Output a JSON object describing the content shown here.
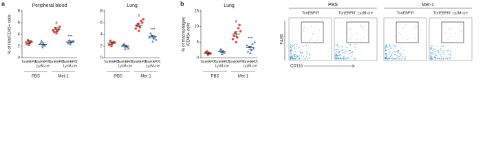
{
  "chart_data": [
    {
      "type": "dot",
      "letter": "a",
      "title": "Peripheral blood",
      "ylabel": [
        "% of IMs/CD45+ cells"
      ],
      "categories": [
        [
          "TonEBPf/f"
        ],
        [
          "TonEBPf/f;",
          "LyzM-cre"
        ],
        [
          "TonEBPf/f"
        ],
        [
          "TonEBPf/f;",
          "LyzM-cre"
        ]
      ],
      "groups": [
        "PBS",
        "Met-1"
      ],
      "colors": [
        "#e0524a",
        "#5b8fc9",
        "#e0524a",
        "#5b8fc9"
      ],
      "points": [
        [
          2.2,
          2.6,
          3.0,
          2.8,
          2.4
        ],
        [
          1.8,
          2.3,
          2.9,
          2.1,
          2.5
        ],
        [
          4.2,
          4.6,
          5.1,
          4.9,
          4.4,
          5.3,
          4.7
        ],
        [
          2.3,
          2.6,
          3.0,
          2.8,
          2.5,
          2.9
        ]
      ],
      "means": [
        2.7,
        2.3,
        4.8,
        2.7
      ],
      "sems": [
        0.3,
        0.3,
        0.3,
        0.2
      ],
      "annotations": [
        null,
        null,
        "#",
        "***"
      ],
      "ylim": [
        0,
        8
      ],
      "yticks": [
        0,
        2,
        4,
        6,
        8
      ]
    },
    {
      "type": "dot",
      "title": "Lung",
      "ylabel": [],
      "categories": [
        [
          "TonEBPf/f"
        ],
        [
          "TonEBPf/f;",
          "LyzM-cre"
        ],
        [
          "TonEBPf/f"
        ],
        [
          "TonEBPf/f;",
          "LyzM-cre"
        ]
      ],
      "groups": [
        "PBS",
        "Met-1"
      ],
      "colors": [
        "#e0524a",
        "#5b8fc9",
        "#e0524a",
        "#5b8fc9"
      ],
      "points": [
        [
          2.0,
          2.5,
          2.9,
          2.7,
          2.2,
          2.6
        ],
        [
          1.5,
          2.0,
          2.4,
          1.8,
          2.2,
          1.6
        ],
        [
          4.6,
          5.2,
          5.8,
          6.3,
          5.5,
          6.0,
          5.0,
          6.6
        ],
        [
          2.8,
          3.3,
          3.9,
          3.6,
          4.2,
          3.1,
          3.5
        ]
      ],
      "means": [
        2.5,
        2.0,
        5.6,
        3.6
      ],
      "sems": [
        0.2,
        0.2,
        0.3,
        0.2
      ],
      "annotations": [
        null,
        null,
        "#",
        "***"
      ],
      "ylim": [
        0,
        8
      ],
      "yticks": [
        0,
        2,
        4,
        6,
        8
      ]
    },
    {
      "type": "dot",
      "letter": "b",
      "title": "Lung",
      "ylabel": [
        "% of macrophages",
        "/CD45+ cells"
      ],
      "categories": [
        [
          "TonEBPf/f"
        ],
        [
          "TonEBPf/f;",
          "LyzM-cre"
        ],
        [
          "TonEBPf/f"
        ],
        [
          "TonEBPf/f;",
          "LyzM-cre"
        ]
      ],
      "groups": [
        "PBS",
        "Met-1"
      ],
      "colors": [
        "#e0524a",
        "#5b8fc9",
        "#e0524a",
        "#5b8fc9"
      ],
      "points": [
        [
          1.0,
          1.5,
          2.0,
          1.3,
          1.7
        ],
        [
          1.2,
          2.0,
          2.8,
          1.6,
          2.3
        ],
        [
          5.0,
          6.5,
          8.0,
          9.5,
          7.0,
          10.5,
          6.0,
          8.5
        ],
        [
          1.5,
          2.5,
          3.5,
          4.5,
          2.0,
          3.0,
          4.0,
          5.0
        ]
      ],
      "means": [
        1.5,
        2.0,
        7.6,
        3.2
      ],
      "sems": [
        0.3,
        0.4,
        0.8,
        0.4
      ],
      "annotations": [
        null,
        null,
        "#",
        "***"
      ],
      "ylim": [
        0,
        15
      ],
      "yticks": [
        0,
        5,
        10,
        15
      ]
    }
  ],
  "flow": {
    "groups": [
      "PBS",
      "Met-1"
    ],
    "panels": [
      "TonEBPf/f",
      "TonEBPf/f; LyzM-cre",
      "TonEBPf/f",
      "TonEBPf/f; LyzM-cre"
    ],
    "ylabel": "F4/80",
    "xlabel": "CD11b"
  }
}
